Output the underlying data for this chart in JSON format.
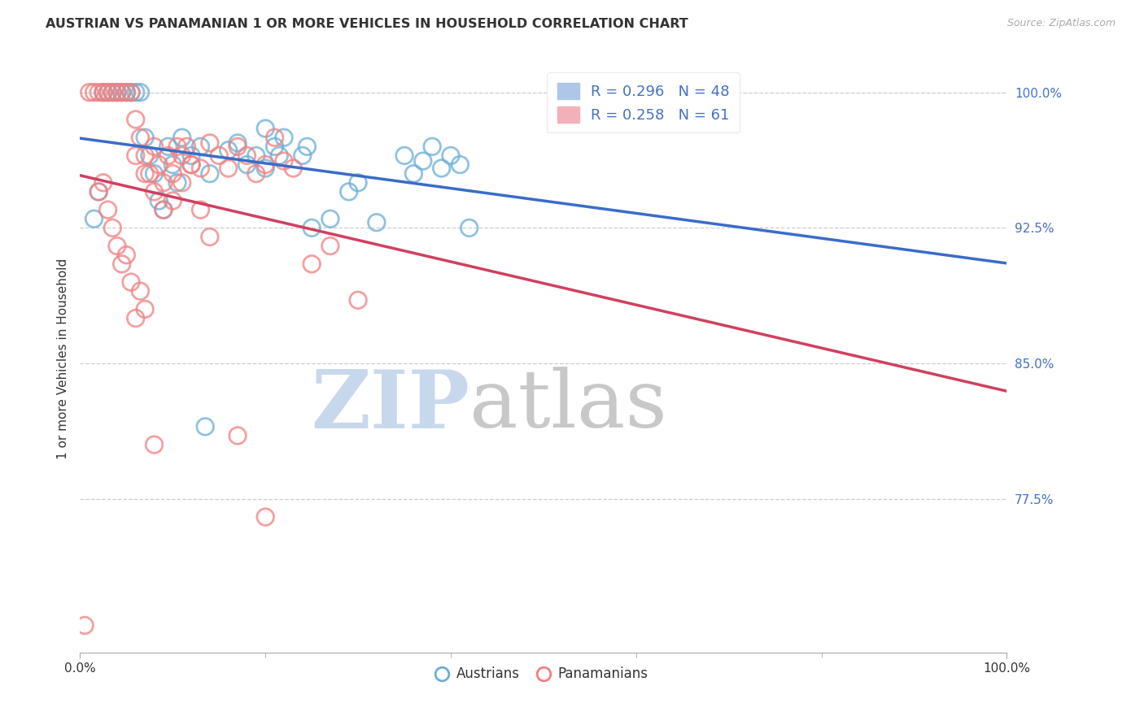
{
  "title": "AUSTRIAN VS PANAMANIAN 1 OR MORE VEHICLES IN HOUSEHOLD CORRELATION CHART",
  "source": "Source: ZipAtlas.com",
  "ylabel": "1 or more Vehicles in Household",
  "xmin": 0.0,
  "xmax": 100.0,
  "ymin": 69.0,
  "ymax": 101.5,
  "yticks": [
    77.5,
    85.0,
    92.5,
    100.0
  ],
  "ytick_labels": [
    "77.5%",
    "85.0%",
    "92.5%",
    "100.0%"
  ],
  "legend_blue_R": 0.296,
  "legend_blue_N": 48,
  "legend_pink_R": 0.258,
  "legend_pink_N": 61,
  "blue_color": "#6baed6",
  "pink_color": "#f08080",
  "blue_line_color": "#3a6cc8",
  "pink_line_color": "#d04060",
  "watermark_zip": "ZIP",
  "watermark_atlas": "atlas",
  "watermark_zip_color": "#c8d8ec",
  "watermark_atlas_color": "#c8c8c8",
  "legend_label_austrians": "Austrians",
  "legend_label_panamanians": "Panamanians",
  "blue_x": [
    1.5,
    2.0,
    2.5,
    3.0,
    3.5,
    4.0,
    4.5,
    5.0,
    5.5,
    6.0,
    6.5,
    7.0,
    7.5,
    8.0,
    8.5,
    9.0,
    9.5,
    10.0,
    10.5,
    11.0,
    12.0,
    13.0,
    14.0,
    16.0,
    17.0,
    18.0,
    19.0,
    20.0,
    21.0,
    25.0,
    27.0,
    29.0,
    30.0,
    32.0,
    35.0,
    36.0,
    37.0,
    38.0,
    39.0,
    40.0,
    41.0,
    42.0,
    20.0,
    22.0,
    24.0,
    24.5,
    21.5,
    13.5
  ],
  "blue_y": [
    93.0,
    94.5,
    100.0,
    100.0,
    100.0,
    100.0,
    100.0,
    100.0,
    100.0,
    100.0,
    100.0,
    97.5,
    96.5,
    95.5,
    94.0,
    93.5,
    97.0,
    96.0,
    95.0,
    97.5,
    96.5,
    97.0,
    95.5,
    96.8,
    97.2,
    96.0,
    96.5,
    95.8,
    97.0,
    92.5,
    93.0,
    94.5,
    95.0,
    92.8,
    96.5,
    95.5,
    96.2,
    97.0,
    95.8,
    96.5,
    96.0,
    92.5,
    98.0,
    97.5,
    96.5,
    97.0,
    96.5,
    81.5
  ],
  "pink_x": [
    1.0,
    1.5,
    2.0,
    2.5,
    3.0,
    3.5,
    4.0,
    4.5,
    5.0,
    5.5,
    6.0,
    6.5,
    7.0,
    7.5,
    8.0,
    8.5,
    9.0,
    9.5,
    10.0,
    10.5,
    11.0,
    11.5,
    12.0,
    13.0,
    14.0,
    15.0,
    16.0,
    17.0,
    18.0,
    19.0,
    20.0,
    21.0,
    22.0,
    23.0,
    6.0,
    7.0,
    8.0,
    9.0,
    10.0,
    11.0,
    12.0,
    13.0,
    14.0,
    3.5,
    4.0,
    4.5,
    5.0,
    5.5,
    6.0,
    6.5,
    7.0,
    2.0,
    2.5,
    3.0,
    25.0,
    27.0,
    30.0,
    0.5,
    8.0,
    17.0,
    20.0
  ],
  "pink_y": [
    100.0,
    100.0,
    100.0,
    100.0,
    100.0,
    100.0,
    100.0,
    100.0,
    100.0,
    100.0,
    98.5,
    97.5,
    96.5,
    95.5,
    97.0,
    96.0,
    95.0,
    96.5,
    95.5,
    97.0,
    96.5,
    97.0,
    96.0,
    95.8,
    97.2,
    96.5,
    95.8,
    97.0,
    96.5,
    95.5,
    96.0,
    97.5,
    96.2,
    95.8,
    96.5,
    95.5,
    94.5,
    93.5,
    94.0,
    95.0,
    96.0,
    93.5,
    92.0,
    92.5,
    91.5,
    90.5,
    91.0,
    89.5,
    87.5,
    89.0,
    88.0,
    94.5,
    95.0,
    93.5,
    90.5,
    91.5,
    88.5,
    70.5,
    80.5,
    81.0,
    76.5
  ]
}
